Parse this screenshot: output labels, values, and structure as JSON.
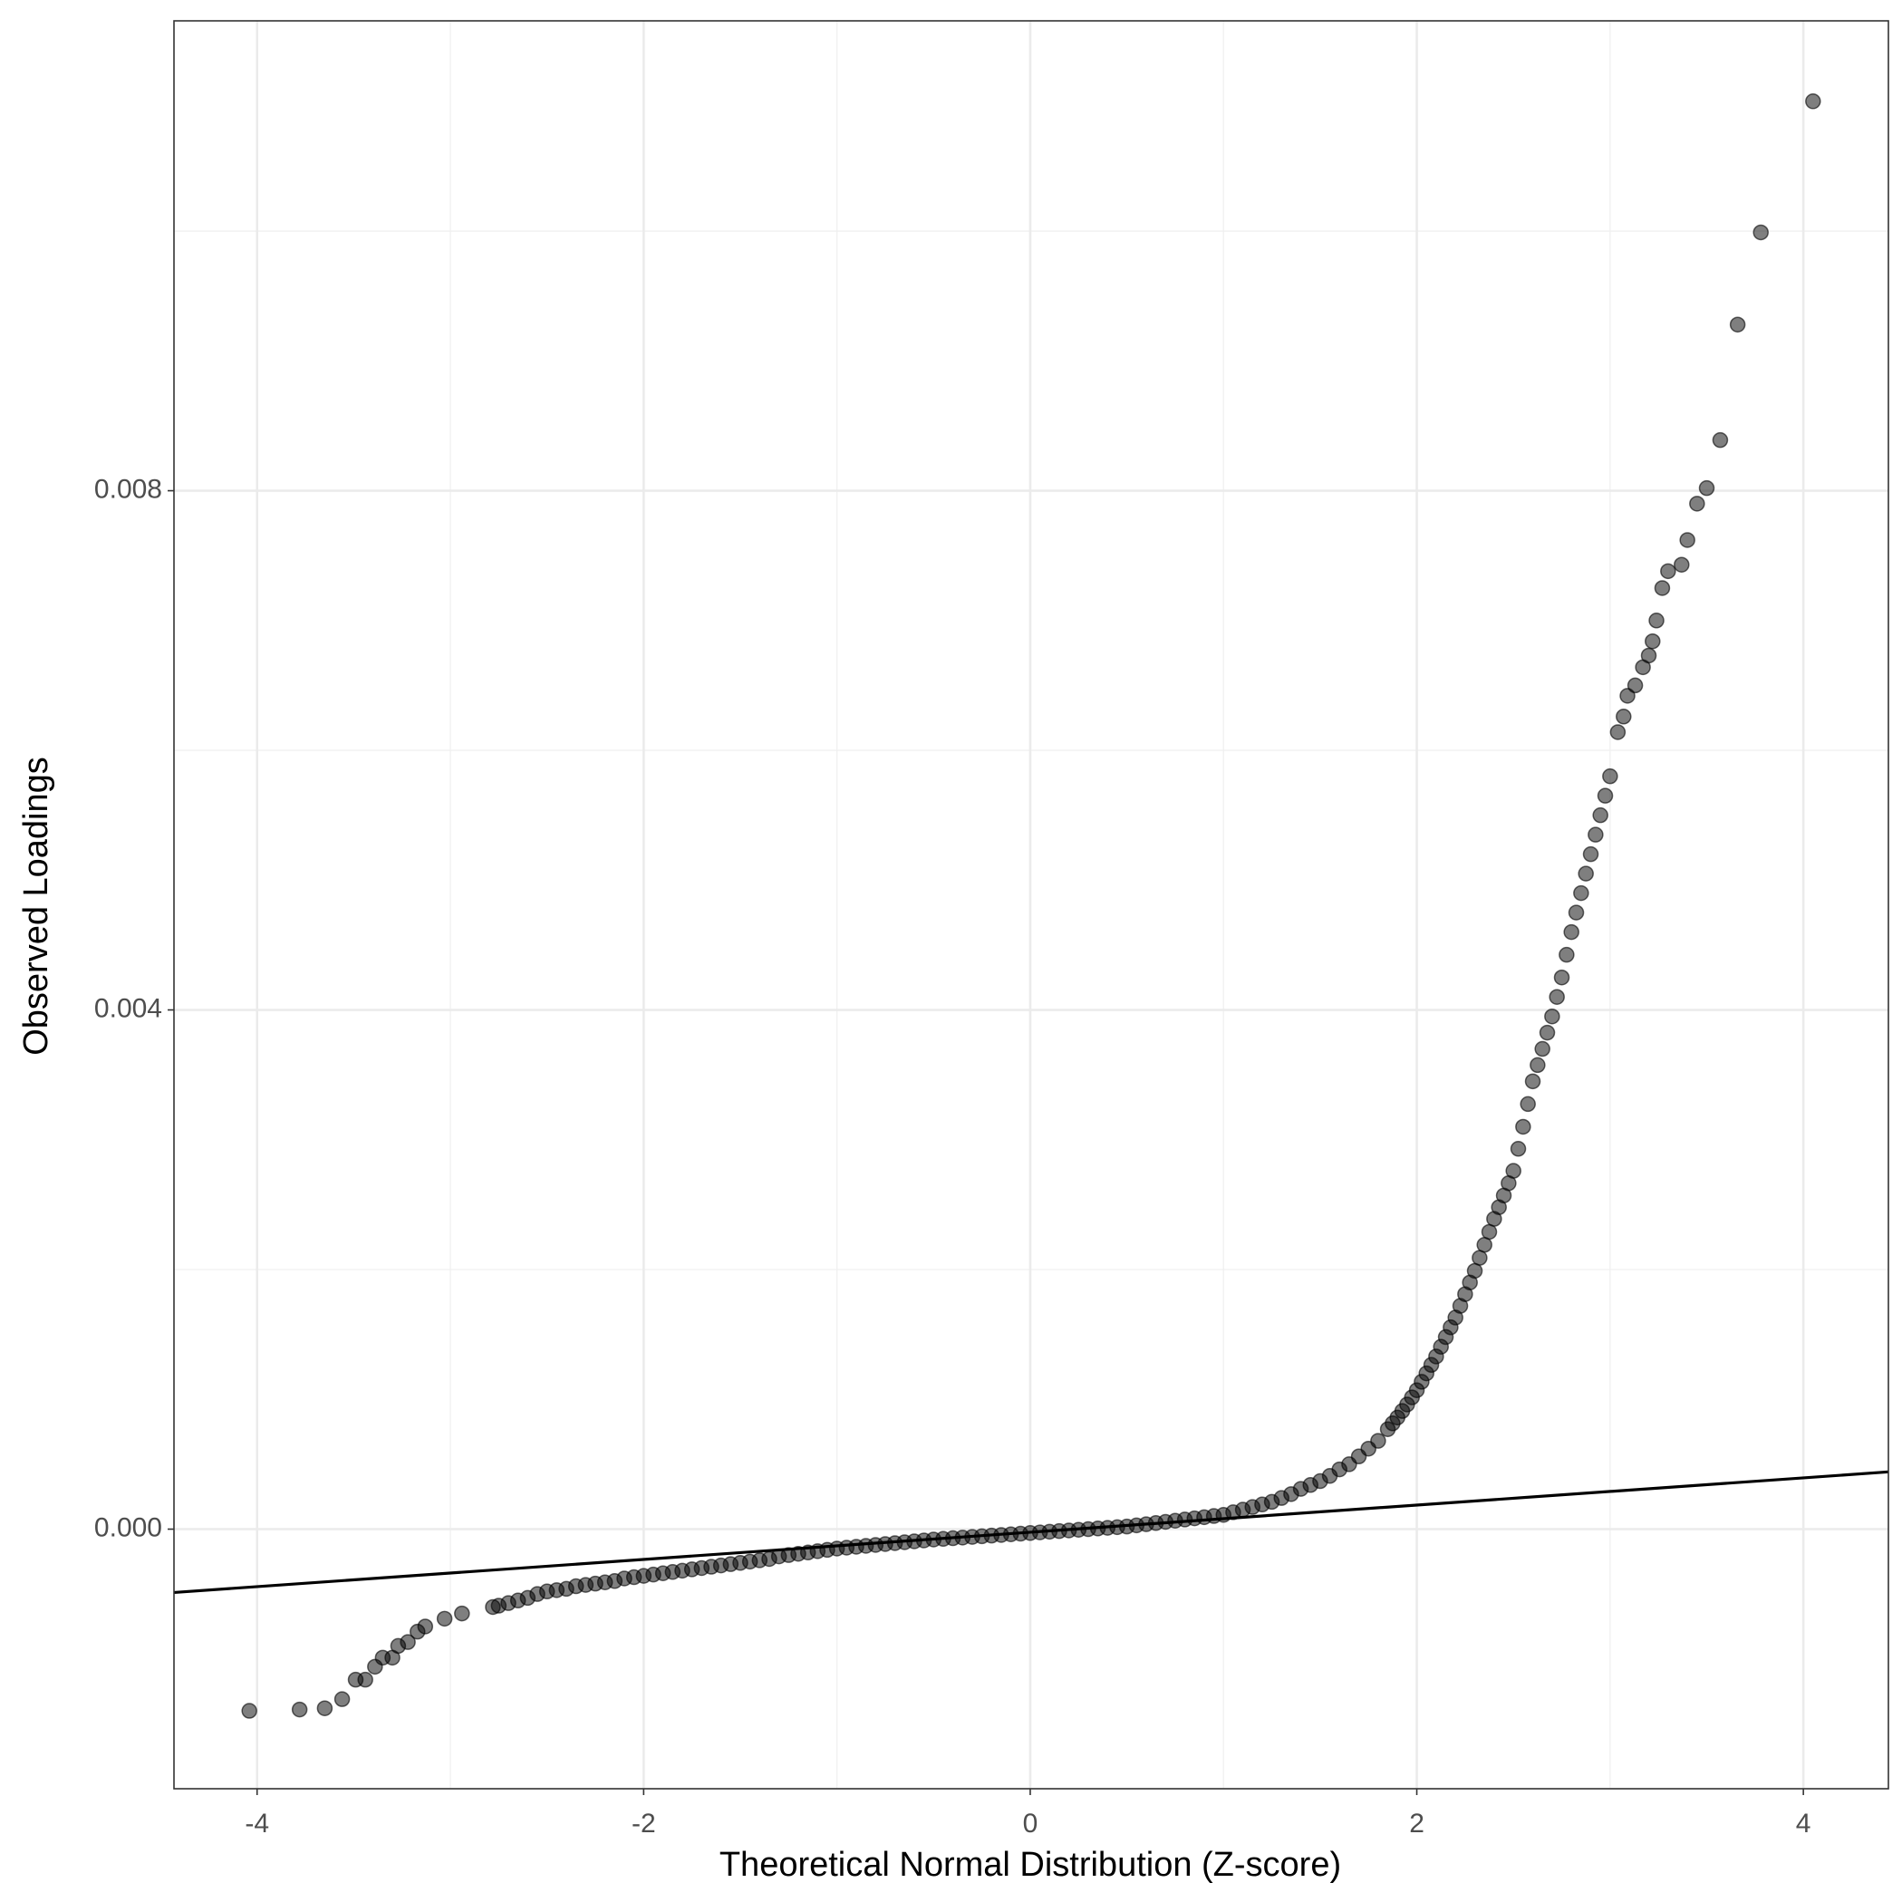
{
  "chart_data": {
    "type": "scatter",
    "x_label": "Theoretical Normal Distribution (Z-score)",
    "y_label": "Observed Loadings",
    "xlim": [
      -4.43,
      4.44
    ],
    "ylim": [
      -0.002,
      0.01162
    ],
    "xticks": [
      -4,
      -2,
      0,
      2,
      4
    ],
    "yticks": [
      {
        "value": 0,
        "label": "0.000"
      },
      {
        "value": 0.004,
        "label": "0.004"
      },
      {
        "value": 0.008,
        "label": "0.008"
      }
    ],
    "grid": true,
    "series": [
      {
        "color": "#000000",
        "x": [
          -4.04,
          -3.78,
          -3.65,
          -3.56,
          -3.49,
          -3.44,
          -3.39,
          -3.35,
          -3.3,
          -3.27,
          -3.22,
          -3.17,
          -3.13,
          -3.03,
          -2.94,
          -2.78,
          -2.75,
          -2.7,
          -2.65,
          -2.6,
          -2.55,
          -2.5,
          -2.45,
          -2.4,
          -2.35,
          -2.3,
          -2.25,
          -2.2,
          -2.15,
          -2.1,
          -2.05,
          -2.0,
          -1.95,
          -1.9,
          -1.85,
          -1.8,
          -1.75,
          -1.7,
          -1.65,
          -1.6,
          -1.55,
          -1.5,
          -1.45,
          -1.4,
          -1.35,
          -1.3,
          -1.25,
          -1.2,
          -1.15,
          -1.1,
          -1.05,
          -1.0,
          -0.95,
          -0.9,
          -0.85,
          -0.8,
          -0.75,
          -0.7,
          -0.65,
          -0.6,
          -0.55,
          -0.5,
          -0.45,
          -0.4,
          -0.35,
          -0.3,
          -0.25,
          -0.2,
          -0.15,
          -0.1,
          -0.05,
          0,
          0.05,
          0.1,
          0.15,
          0.2,
          0.25,
          0.3,
          0.35,
          0.4,
          0.45,
          0.5,
          0.55,
          0.6,
          0.65,
          0.7,
          0.75,
          0.8,
          0.85,
          0.9,
          0.95,
          1.0,
          1.05,
          1.1,
          1.15,
          1.2,
          1.25,
          1.3,
          1.35,
          1.4,
          1.45,
          1.5,
          1.55,
          1.6,
          1.65,
          1.7,
          1.75,
          1.8,
          1.85,
          1.875,
          1.9,
          1.925,
          1.95,
          1.975,
          2.0,
          2.025,
          2.05,
          2.075,
          2.1,
          2.125,
          2.15,
          2.175,
          2.2,
          2.225,
          2.25,
          2.275,
          2.3,
          2.325,
          2.35,
          2.375,
          2.4,
          2.425,
          2.45,
          2.475,
          2.5,
          2.525,
          2.55,
          2.575,
          2.6,
          2.625,
          2.65,
          2.675,
          2.7,
          2.725,
          2.75,
          2.775,
          2.8,
          2.825,
          2.85,
          2.875,
          2.9,
          2.925,
          2.95,
          2.975,
          3.0,
          3.04,
          3.07,
          3.09,
          3.13,
          3.17,
          3.2,
          3.22,
          3.24,
          3.27,
          3.3,
          3.37,
          3.4,
          3.45,
          3.5,
          3.57,
          3.66,
          3.78,
          4.05
        ],
        "values": [
          -0.0014,
          -0.00139,
          -0.00138,
          -0.00131,
          -0.00116,
          -0.00116,
          -0.00106,
          -0.00099,
          -0.00099,
          -0.0009,
          -0.00087,
          -0.00079,
          -0.00075,
          -0.00069,
          -0.00065,
          -0.0006,
          -0.00059,
          -0.00057,
          -0.00055,
          -0.00053,
          -0.0005,
          -0.00048,
          -0.00047,
          -0.00046,
          -0.00044,
          -0.00043,
          -0.00042,
          -0.00041,
          -0.0004,
          -0.00038,
          -0.00037,
          -0.00036,
          -0.00035,
          -0.00034,
          -0.00033,
          -0.00032,
          -0.00031,
          -0.0003,
          -0.00029,
          -0.00028,
          -0.00027,
          -0.00026,
          -0.00025,
          -0.00024,
          -0.00023,
          -0.00021,
          -0.0002,
          -0.00019,
          -0.00018,
          -0.00017,
          -0.00016,
          -0.00015,
          -0.000143,
          -0.000136,
          -0.000129,
          -0.000122,
          -0.000115,
          -0.000108,
          -0.000101,
          -9.4e-05,
          -8.7e-05,
          -8e-05,
          -7.5e-05,
          -7e-05,
          -6.5e-05,
          -6e-05,
          -5.5e-05,
          -5e-05,
          -4.5e-05,
          -4e-05,
          -3.5e-05,
          -3e-05,
          -2.5e-05,
          -2e-05,
          -1.5e-05,
          -1e-05,
          -5e-06,
          0,
          5e-06,
          1e-05,
          1.5e-05,
          2e-05,
          2.9e-05,
          3.8e-05,
          4.7e-05,
          5.6e-05,
          6.5e-05,
          7.4e-05,
          8.3e-05,
          9.2e-05,
          0.000101,
          0.00011,
          0.00013,
          0.00015,
          0.00017,
          0.00019,
          0.00021,
          0.00024,
          0.00027,
          0.00031,
          0.00034,
          0.00037,
          0.00041,
          0.00046,
          0.0005,
          0.00056,
          0.00062,
          0.00068,
          0.00077,
          0.000815,
          0.00086,
          0.00091,
          0.00096,
          0.001015,
          0.00107,
          0.001135,
          0.0012,
          0.001265,
          0.00133,
          0.001405,
          0.00148,
          0.001555,
          0.00163,
          0.00172,
          0.00181,
          0.0019,
          0.00199,
          0.00209,
          0.00219,
          0.00229,
          0.00239,
          0.00248,
          0.00257,
          0.002665,
          0.00276,
          0.00293,
          0.0031,
          0.003275,
          0.00345,
          0.003575,
          0.0037,
          0.003825,
          0.00395,
          0.0041,
          0.00425,
          0.004425,
          0.0046,
          0.00475,
          0.0049,
          0.00505,
          0.0052,
          0.00535,
          0.0055,
          0.00565,
          0.0058,
          0.00614,
          0.00626,
          0.00642,
          0.0065,
          0.00664,
          0.00673,
          0.00684,
          0.007,
          0.00725,
          0.00738,
          0.00743,
          0.00762,
          0.0079,
          0.00802,
          0.00839,
          0.00928,
          0.00999,
          0.011
        ]
      }
    ],
    "reference_line": {
      "color": "#000000",
      "x": [
        -4.43,
        4.44
      ],
      "values": [
        -0.000488,
        0.000441
      ]
    }
  }
}
